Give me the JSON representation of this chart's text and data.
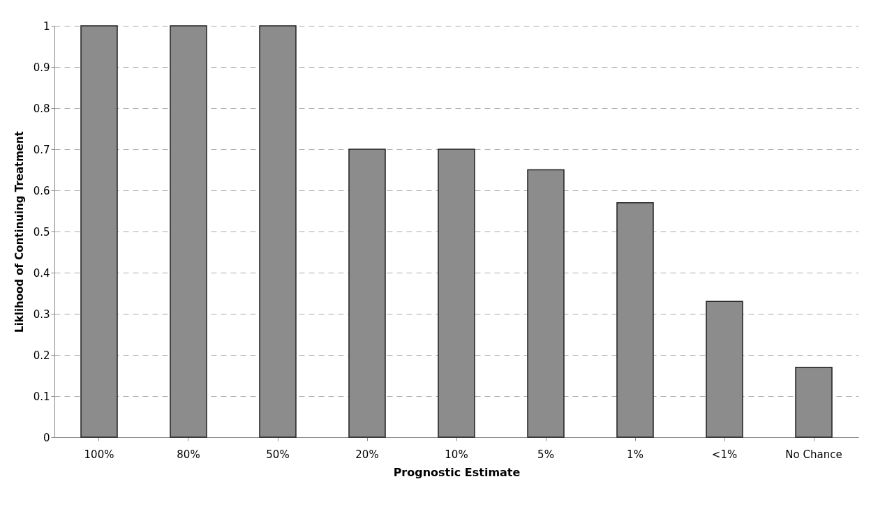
{
  "chart_data": {
    "type": "bar",
    "xlabel": "Prognostic Estimate",
    "ylabel": "Liklihood of Continuing Treatment",
    "categories": [
      "100%",
      "80%",
      "50%",
      "20%",
      "10%",
      "5%",
      "1%",
      "<1%",
      "No Chance"
    ],
    "values": [
      1,
      1,
      1,
      0.7,
      0.7,
      0.65,
      0.57,
      0.33,
      0.17
    ],
    "color": "#8c8c8c",
    "ylim": [
      0,
      1
    ],
    "yticks": [
      0,
      0.1,
      0.2,
      0.3,
      0.4,
      0.5,
      0.6,
      0.7,
      0.8,
      0.9,
      1
    ],
    "grid": "y"
  }
}
